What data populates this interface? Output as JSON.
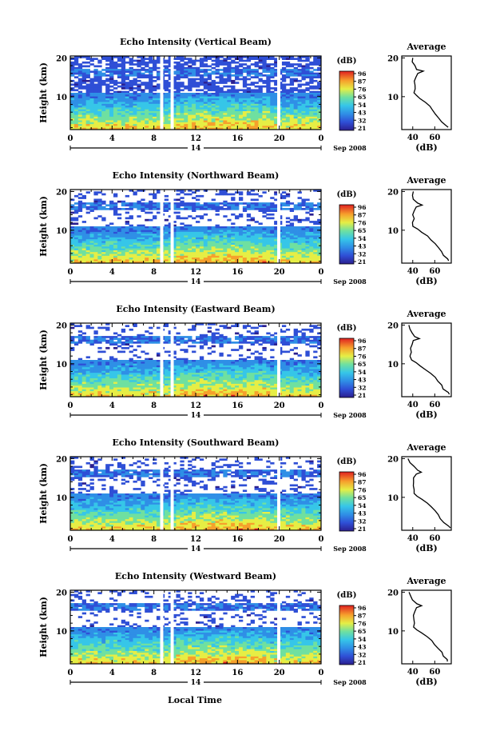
{
  "chart_data": [
    {
      "type": "heatmap",
      "title": "Echo Intensity (Vertical Beam)",
      "ylabel": "Height (km)",
      "x_ticks": [
        "0",
        "4",
        "8",
        "12",
        "16",
        "20",
        "0"
      ],
      "y_ticks": [
        "10",
        "20"
      ],
      "date_day": "14",
      "date_month": "Sep 2008",
      "xlim": [
        0,
        24
      ],
      "ylim": [
        1.5,
        20.5
      ],
      "gaps": [
        [
          8.6,
          8.9
        ],
        [
          9.6,
          9.9
        ],
        [
          19.8,
          20.1
        ]
      ],
      "colorbar": {
        "label": "(dB)",
        "ticks": [
          "96",
          "87",
          "76",
          "65",
          "54",
          "43",
          "32",
          "21"
        ]
      },
      "average": {
        "title": "Average",
        "xlabel": "(dB)",
        "x_ticks": [
          "40",
          "60"
        ],
        "y_ticks": [
          "10",
          "20"
        ],
        "xlim": [
          30,
          75
        ]
      }
    },
    {
      "type": "heatmap",
      "title": "Echo Intensity (Northward Beam)",
      "ylabel": "Height (km)",
      "x_ticks": [
        "0",
        "4",
        "8",
        "12",
        "16",
        "20",
        "0"
      ],
      "y_ticks": [
        "10",
        "20"
      ],
      "date_day": "14",
      "date_month": "Sep 2008",
      "xlim": [
        0,
        24
      ],
      "ylim": [
        1.5,
        20.5
      ],
      "gaps": [
        [
          8.6,
          8.9
        ],
        [
          9.6,
          9.9
        ],
        [
          19.8,
          20.1
        ]
      ],
      "colorbar": {
        "label": "(dB)",
        "ticks": [
          "96",
          "87",
          "76",
          "65",
          "54",
          "43",
          "32",
          "21"
        ]
      },
      "average": {
        "title": "Average",
        "xlabel": "(dB)",
        "x_ticks": [
          "40",
          "60"
        ],
        "y_ticks": [
          "10",
          "20"
        ],
        "xlim": [
          30,
          75
        ]
      }
    },
    {
      "type": "heatmap",
      "title": "Echo Intensity (Eastward Beam)",
      "ylabel": "Height (km)",
      "x_ticks": [
        "0",
        "4",
        "8",
        "12",
        "16",
        "20",
        "0"
      ],
      "y_ticks": [
        "10",
        "20"
      ],
      "date_day": "14",
      "date_month": "Sep 2008",
      "xlim": [
        0,
        24
      ],
      "ylim": [
        1.5,
        20.5
      ],
      "gaps": [
        [
          8.6,
          8.9
        ],
        [
          9.6,
          9.9
        ],
        [
          19.8,
          20.1
        ]
      ],
      "colorbar": {
        "label": "(dB)",
        "ticks": [
          "96",
          "87",
          "76",
          "65",
          "54",
          "43",
          "32",
          "21"
        ]
      },
      "average": {
        "title": "Average",
        "xlabel": "(dB)",
        "x_ticks": [
          "40",
          "60"
        ],
        "y_ticks": [
          "10",
          "20"
        ],
        "xlim": [
          30,
          75
        ]
      }
    },
    {
      "type": "heatmap",
      "title": "Echo Intensity (Southward Beam)",
      "ylabel": "Height (km)",
      "x_ticks": [
        "0",
        "4",
        "8",
        "12",
        "16",
        "20",
        "0"
      ],
      "y_ticks": [
        "10",
        "20"
      ],
      "date_day": "14",
      "date_month": "Sep 2008",
      "xlim": [
        0,
        24
      ],
      "ylim": [
        1.5,
        20.5
      ],
      "gaps": [
        [
          8.6,
          8.9
        ],
        [
          9.6,
          9.9
        ],
        [
          19.8,
          20.1
        ]
      ],
      "colorbar": {
        "label": "(dB)",
        "ticks": [
          "96",
          "87",
          "76",
          "65",
          "54",
          "43",
          "32",
          "21"
        ]
      },
      "average": {
        "title": "Average",
        "xlabel": "(dB)",
        "x_ticks": [
          "40",
          "60"
        ],
        "y_ticks": [
          "10",
          "20"
        ],
        "xlim": [
          30,
          75
        ]
      }
    },
    {
      "type": "heatmap",
      "title": "Echo Intensity (Westward Beam)",
      "ylabel": "Height (km)",
      "x_ticks": [
        "0",
        "4",
        "8",
        "12",
        "16",
        "20",
        "0"
      ],
      "y_ticks": [
        "10",
        "20"
      ],
      "date_day": "14",
      "date_month": "Sep 2008",
      "xlim": [
        0,
        24
      ],
      "ylim": [
        1.5,
        20.5
      ],
      "gaps": [
        [
          8.6,
          8.9
        ],
        [
          9.6,
          9.9
        ],
        [
          19.8,
          20.1
        ]
      ],
      "colorbar": {
        "label": "(dB)",
        "ticks": [
          "96",
          "87",
          "76",
          "65",
          "54",
          "43",
          "32",
          "21"
        ]
      },
      "average": {
        "title": "Average",
        "xlabel": "(dB)",
        "x_ticks": [
          "40",
          "60"
        ],
        "y_ticks": [
          "10",
          "20"
        ],
        "xlim": [
          30,
          75
        ]
      }
    }
  ],
  "figure": {
    "xlabel": "Local Time"
  }
}
